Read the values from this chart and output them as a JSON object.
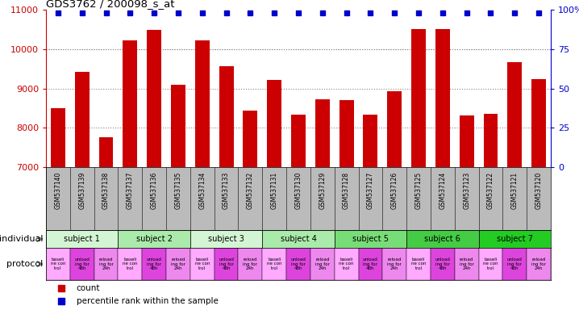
{
  "title": "GDS3762 / 200098_s_at",
  "samples": [
    "GSM537140",
    "GSM537139",
    "GSM537138",
    "GSM537137",
    "GSM537136",
    "GSM537135",
    "GSM537134",
    "GSM537133",
    "GSM537132",
    "GSM537131",
    "GSM537130",
    "GSM537129",
    "GSM537128",
    "GSM537127",
    "GSM537126",
    "GSM537125",
    "GSM537124",
    "GSM537123",
    "GSM537122",
    "GSM537121",
    "GSM537120"
  ],
  "counts": [
    8490,
    9430,
    7750,
    10230,
    10480,
    9090,
    10230,
    9570,
    8440,
    9210,
    8330,
    8720,
    8700,
    8330,
    8920,
    10510,
    10500,
    8310,
    8350,
    9660,
    9230
  ],
  "bar_color": "#cc0000",
  "dot_color": "#0000cc",
  "ylim_left": [
    7000,
    11000
  ],
  "ylim_right": [
    0,
    100
  ],
  "yticks_left": [
    7000,
    8000,
    9000,
    10000,
    11000
  ],
  "yticks_right": [
    0,
    25,
    50,
    75,
    100
  ],
  "grid_values": [
    8000,
    9000,
    10000
  ],
  "subjects": [
    {
      "label": "subject 1",
      "start": 0,
      "end": 3,
      "color": "#d4f5d4"
    },
    {
      "label": "subject 2",
      "start": 3,
      "end": 6,
      "color": "#aaeaaa"
    },
    {
      "label": "subject 3",
      "start": 6,
      "end": 9,
      "color": "#d4f5d4"
    },
    {
      "label": "subject 4",
      "start": 9,
      "end": 12,
      "color": "#aaeaaa"
    },
    {
      "label": "subject 5",
      "start": 12,
      "end": 15,
      "color": "#77dd77"
    },
    {
      "label": "subject 6",
      "start": 15,
      "end": 18,
      "color": "#44cc44"
    },
    {
      "label": "subject 7",
      "start": 18,
      "end": 21,
      "color": "#22cc22"
    }
  ],
  "protocol_colors": [
    "#ffaaff",
    "#dd44dd",
    "#ee88ee"
  ],
  "protocol_labels": [
    "baseli\nne con\ntrol",
    "unload\ning for\n48h",
    "reload\ning for\n24h"
  ],
  "axis_color_left": "#cc0000",
  "axis_color_right": "#0000cc",
  "xlabel_bg": "#bbbbbb",
  "individual_label": "individual",
  "protocol_label": "protocol",
  "legend_count_label": "count",
  "legend_pct_label": "percentile rank within the sample"
}
